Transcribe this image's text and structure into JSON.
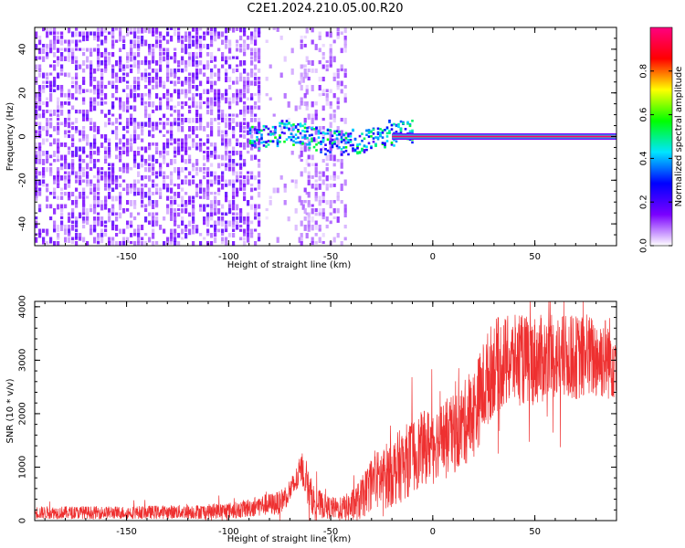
{
  "title": "C2E1.2024.210.05.00.R20",
  "chart_data": [
    {
      "type": "heatmap",
      "xlabel": "Height of straight line (km)",
      "ylabel": "Frequency (Hz)",
      "xlim": [
        -195,
        90
      ],
      "ylim": [
        -50,
        50
      ],
      "x_ticks": [
        -150,
        -100,
        -50,
        0,
        50
      ],
      "x_tick_labels": [
        "-150",
        "-100",
        "-50",
        "0",
        "50"
      ],
      "y_ticks": [
        -40,
        -20,
        0,
        20,
        40
      ],
      "y_tick_labels": [
        "-40",
        "-20",
        "0",
        "20",
        "40"
      ],
      "colorbar": {
        "label": "Normalized spectral amplitude",
        "range": [
          0,
          1
        ],
        "ticks": [
          0.0,
          0.2,
          0.4,
          0.6,
          0.8
        ],
        "tick_labels": [
          "0.0",
          "0.2",
          "0.4",
          "0.6",
          "0.8"
        ],
        "colors": [
          "#ffffff",
          "#7a00ff",
          "#0000ff",
          "#00e5ff",
          "#00ff00",
          "#ffff00",
          "#ff0000",
          "#ff0080"
        ]
      },
      "regions": [
        {
          "x": [
            -195,
            -85
          ],
          "freq": [
            -50,
            50
          ],
          "amplitude": 0.1,
          "pattern": "broadband noise"
        },
        {
          "x": [
            -82,
            -62
          ],
          "freq": [
            -50,
            50
          ],
          "amplitude": 0.05,
          "pattern": "sparse noise"
        },
        {
          "x": [
            -65,
            -42
          ],
          "freq": [
            -50,
            50
          ],
          "amplitude": 0.07,
          "pattern": "broadband noise"
        },
        {
          "x": [
            -90,
            -10
          ],
          "freq": [
            -6,
            6
          ],
          "amplitude": 0.35,
          "pattern": "wandering signal near 0 Hz"
        },
        {
          "x": [
            -20,
            90
          ],
          "freq": [
            -1,
            1
          ],
          "amplitude": 0.98,
          "pattern": "narrow line at 0 Hz"
        }
      ]
    },
    {
      "type": "line",
      "xlabel": "Height of straight line (km)",
      "ylabel": "SNR (10 * v/v)",
      "xlim": [
        -195,
        90
      ],
      "ylim": [
        0,
        4100
      ],
      "x_ticks": [
        -150,
        -100,
        -50,
        0,
        50
      ],
      "x_tick_labels": [
        "-150",
        "-100",
        "-50",
        "0",
        "50"
      ],
      "y_ticks": [
        0,
        1000,
        2000,
        3000,
        4000
      ],
      "y_tick_labels": [
        "0",
        "1000",
        "2000",
        "3000",
        "4000"
      ],
      "line_color": "#ee3030",
      "series_envelope": {
        "x": [
          -195,
          -150,
          -110,
          -95,
          -85,
          -75,
          -68,
          -64,
          -62,
          -58,
          -52,
          -46,
          -40,
          -35,
          -30,
          -25,
          -20,
          -15,
          -10,
          -5,
          0,
          5,
          10,
          15,
          20,
          25,
          30,
          40,
          50,
          60,
          70,
          80,
          90
        ],
        "mean": [
          150,
          150,
          170,
          200,
          280,
          330,
          650,
          1000,
          700,
          350,
          250,
          220,
          260,
          400,
          700,
          800,
          900,
          1050,
          1200,
          1350,
          1450,
          1550,
          1600,
          1800,
          2000,
          2500,
          2900,
          3000,
          3000,
          3050,
          3050,
          3050,
          3050
        ],
        "spread": [
          120,
          120,
          140,
          160,
          200,
          220,
          250,
          300,
          350,
          300,
          220,
          200,
          300,
          400,
          500,
          600,
          650,
          700,
          700,
          700,
          700,
          700,
          750,
          800,
          850,
          900,
          900,
          850,
          850,
          800,
          800,
          800,
          800
        ]
      }
    }
  ]
}
